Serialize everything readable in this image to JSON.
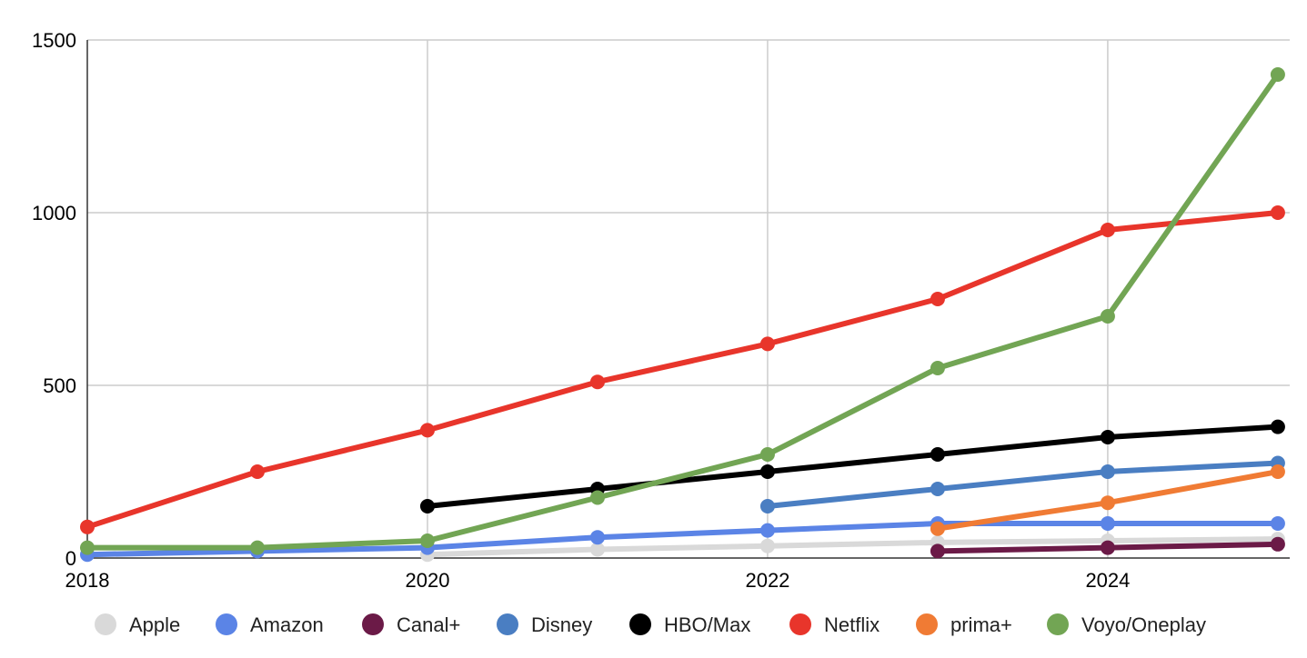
{
  "chart_data": {
    "type": "line",
    "title": "",
    "xlabel": "",
    "ylabel": "",
    "xlim": [
      2018,
      2025.07
    ],
    "ylim": [
      0,
      1500
    ],
    "grid": true,
    "legend_position": "bottom",
    "x_ticks": [
      2018,
      2020,
      2022,
      2024
    ],
    "y_ticks": [
      0,
      500,
      1000,
      1500
    ],
    "x_tick_labels": [
      "2018",
      "2020",
      "2022",
      "2024"
    ],
    "y_tick_labels": [
      "0",
      "500",
      "1000",
      "1500"
    ],
    "series": [
      {
        "name": "Apple",
        "color": "#d9d9d9",
        "points": [
          [
            2020,
            10
          ],
          [
            2021,
            25
          ],
          [
            2022,
            35
          ],
          [
            2023,
            45
          ],
          [
            2024,
            50
          ],
          [
            2025,
            55
          ]
        ]
      },
      {
        "name": "Amazon",
        "color": "#5b84e6",
        "points": [
          [
            2018,
            10
          ],
          [
            2019,
            20
          ],
          [
            2020,
            30
          ],
          [
            2021,
            60
          ],
          [
            2022,
            80
          ],
          [
            2023,
            100
          ],
          [
            2024,
            100
          ],
          [
            2025,
            100
          ]
        ]
      },
      {
        "name": "Canal+",
        "color": "#6b1a47",
        "points": [
          [
            2023,
            20
          ],
          [
            2024,
            30
          ],
          [
            2025,
            40
          ]
        ]
      },
      {
        "name": "Disney",
        "color": "#4a7ec2",
        "points": [
          [
            2022,
            150
          ],
          [
            2023,
            200
          ],
          [
            2024,
            250
          ],
          [
            2025,
            275
          ]
        ]
      },
      {
        "name": "HBO/Max",
        "color": "#000000",
        "points": [
          [
            2020,
            150
          ],
          [
            2021,
            200
          ],
          [
            2022,
            250
          ],
          [
            2023,
            300
          ],
          [
            2024,
            350
          ],
          [
            2025,
            380
          ]
        ]
      },
      {
        "name": "Netflix",
        "color": "#e8352b",
        "points": [
          [
            2018,
            90
          ],
          [
            2019,
            250
          ],
          [
            2020,
            370
          ],
          [
            2021,
            510
          ],
          [
            2022,
            620
          ],
          [
            2023,
            750
          ],
          [
            2024,
            950
          ],
          [
            2025,
            1000
          ]
        ]
      },
      {
        "name": "prima+",
        "color": "#f07b34",
        "points": [
          [
            2023,
            85
          ],
          [
            2024,
            160
          ],
          [
            2025,
            250
          ]
        ]
      },
      {
        "name": "Voyo/Oneplay",
        "color": "#72a554",
        "points": [
          [
            2018,
            30
          ],
          [
            2019,
            30
          ],
          [
            2020,
            50
          ],
          [
            2021,
            175
          ],
          [
            2022,
            300
          ],
          [
            2023,
            550
          ],
          [
            2024,
            700
          ],
          [
            2025,
            1400
          ]
        ]
      }
    ]
  }
}
